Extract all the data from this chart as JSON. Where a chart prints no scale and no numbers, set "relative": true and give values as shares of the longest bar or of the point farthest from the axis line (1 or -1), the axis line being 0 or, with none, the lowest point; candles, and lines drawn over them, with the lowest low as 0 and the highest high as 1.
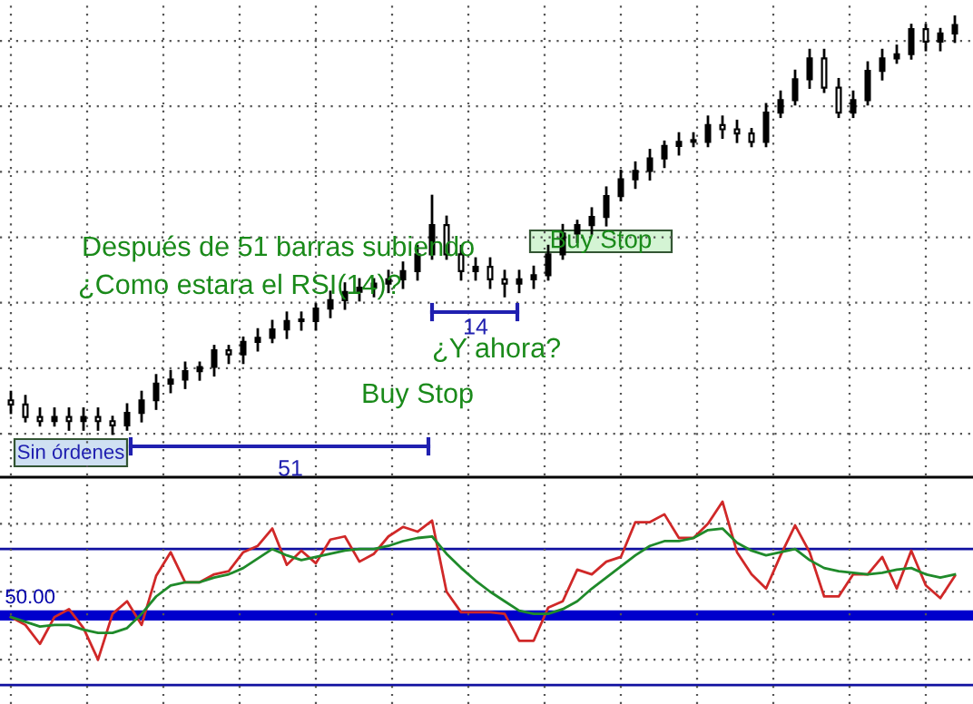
{
  "chart_data": [
    {
      "type": "candlestick",
      "relative": true,
      "color": "#000000",
      "grid": true,
      "categories": [
        null,
        null,
        null,
        null,
        null,
        null,
        null,
        null,
        null,
        null,
        null,
        null,
        null,
        null,
        null,
        null,
        null,
        null,
        null,
        null,
        null,
        null,
        null,
        null,
        null,
        null,
        null,
        null,
        null,
        null,
        null,
        null,
        null,
        null,
        null,
        null,
        null,
        null,
        null,
        null,
        null,
        null,
        null,
        null,
        null,
        null,
        null,
        null,
        null,
        null,
        null,
        null,
        null,
        null,
        null,
        null,
        null,
        null,
        null,
        null,
        null,
        null,
        null,
        null,
        null,
        null
      ],
      "ohlc": [
        [
          0.08,
          0.1,
          0.05,
          0.07
        ],
        [
          0.07,
          0.09,
          0.03,
          0.04
        ],
        [
          0.04,
          0.06,
          0.02,
          0.03
        ],
        [
          0.03,
          0.06,
          0.02,
          0.04
        ],
        [
          0.04,
          0.06,
          0.01,
          0.03
        ],
        [
          0.03,
          0.06,
          0.01,
          0.04
        ],
        [
          0.04,
          0.06,
          0.01,
          0.03
        ],
        [
          0.03,
          0.04,
          0.0,
          0.02
        ],
        [
          0.02,
          0.07,
          0.01,
          0.05
        ],
        [
          0.05,
          0.1,
          0.03,
          0.08
        ],
        [
          0.08,
          0.14,
          0.06,
          0.12
        ],
        [
          0.12,
          0.15,
          0.1,
          0.13
        ],
        [
          0.13,
          0.17,
          0.11,
          0.15
        ],
        [
          0.15,
          0.17,
          0.13,
          0.16
        ],
        [
          0.16,
          0.21,
          0.14,
          0.2
        ],
        [
          0.2,
          0.21,
          0.17,
          0.19
        ],
        [
          0.19,
          0.23,
          0.17,
          0.22
        ],
        [
          0.22,
          0.25,
          0.2,
          0.23
        ],
        [
          0.23,
          0.27,
          0.22,
          0.25
        ],
        [
          0.25,
          0.29,
          0.23,
          0.27
        ],
        [
          0.27,
          0.29,
          0.25,
          0.27
        ],
        [
          0.27,
          0.31,
          0.25,
          0.3
        ],
        [
          0.3,
          0.34,
          0.28,
          0.32
        ],
        [
          0.32,
          0.36,
          0.3,
          0.34
        ],
        [
          0.34,
          0.37,
          0.32,
          0.35
        ],
        [
          0.35,
          0.37,
          0.33,
          0.36
        ],
        [
          0.36,
          0.39,
          0.34,
          0.37
        ],
        [
          0.37,
          0.41,
          0.35,
          0.39
        ],
        [
          0.39,
          0.45,
          0.37,
          0.43
        ],
        [
          0.43,
          0.57,
          0.42,
          0.5
        ],
        [
          0.5,
          0.52,
          0.42,
          0.43
        ],
        [
          0.43,
          0.45,
          0.37,
          0.39
        ],
        [
          0.39,
          0.42,
          0.37,
          0.4
        ],
        [
          0.4,
          0.42,
          0.35,
          0.37
        ],
        [
          0.37,
          0.39,
          0.33,
          0.36
        ],
        [
          0.36,
          0.39,
          0.34,
          0.37
        ],
        [
          0.37,
          0.4,
          0.35,
          0.38
        ],
        [
          0.38,
          0.45,
          0.37,
          0.43
        ],
        [
          0.43,
          0.5,
          0.42,
          0.48
        ],
        [
          0.48,
          0.51,
          0.46,
          0.5
        ],
        [
          0.5,
          0.54,
          0.48,
          0.52
        ],
        [
          0.52,
          0.59,
          0.5,
          0.57
        ],
        [
          0.57,
          0.63,
          0.56,
          0.61
        ],
        [
          0.61,
          0.65,
          0.59,
          0.63
        ],
        [
          0.63,
          0.68,
          0.61,
          0.66
        ],
        [
          0.66,
          0.7,
          0.64,
          0.69
        ],
        [
          0.69,
          0.72,
          0.67,
          0.7
        ],
        [
          0.7,
          0.72,
          0.69,
          0.7
        ],
        [
          0.7,
          0.76,
          0.69,
          0.74
        ],
        [
          0.74,
          0.76,
          0.71,
          0.73
        ],
        [
          0.73,
          0.75,
          0.7,
          0.72
        ],
        [
          0.72,
          0.73,
          0.69,
          0.7
        ],
        [
          0.7,
          0.79,
          0.69,
          0.77
        ],
        [
          0.77,
          0.82,
          0.76,
          0.8
        ],
        [
          0.8,
          0.87,
          0.79,
          0.85
        ],
        [
          0.85,
          0.92,
          0.83,
          0.9
        ],
        [
          0.9,
          0.92,
          0.82,
          0.83
        ],
        [
          0.83,
          0.85,
          0.76,
          0.77
        ],
        [
          0.77,
          0.82,
          0.76,
          0.8
        ],
        [
          0.8,
          0.89,
          0.79,
          0.87
        ],
        [
          0.87,
          0.92,
          0.85,
          0.9
        ],
        [
          0.9,
          0.93,
          0.89,
          0.91
        ],
        [
          0.91,
          0.98,
          0.9,
          0.97
        ],
        [
          0.97,
          0.98,
          0.92,
          0.94
        ],
        [
          0.94,
          0.97,
          0.92,
          0.96
        ],
        [
          0.96,
          1.0,
          0.94,
          0.98
        ]
      ],
      "annotations": [
        "Después de 51 barras subiendo",
        "¿Como estara el RSI(14)?",
        "Buy Stop",
        "¿Y ahora?",
        "14",
        "Buy Stop",
        "51",
        "Sin órdenes"
      ]
    },
    {
      "type": "line",
      "relative": true,
      "grid": true,
      "categories": [
        null,
        null,
        null,
        null,
        null,
        null,
        null,
        null,
        null,
        null,
        null,
        null,
        null,
        null,
        null,
        null,
        null,
        null,
        null,
        null,
        null,
        null,
        null,
        null,
        null,
        null,
        null,
        null,
        null,
        null,
        null,
        null,
        null,
        null,
        null,
        null,
        null,
        null,
        null,
        null,
        null,
        null,
        null,
        null,
        null,
        null,
        null,
        null,
        null,
        null,
        null,
        null,
        null,
        null,
        null,
        null,
        null,
        null,
        null,
        null,
        null,
        null,
        null,
        null,
        null,
        null
      ],
      "series": [
        {
          "color": "#d02828",
          "values": [
            0.27,
            0.22,
            0.1,
            0.27,
            0.32,
            0.2,
            0,
            0.29,
            0.37,
            0.22,
            0.53,
            0.68,
            0.49,
            0.49,
            0.54,
            0.56,
            0.68,
            0.72,
            0.83,
            0.6,
            0.69,
            0.61,
            0.76,
            0.78,
            0.62,
            0.67,
            0.78,
            0.84,
            0.81,
            0.88,
            0.43,
            0.3,
            0.3,
            0.3,
            0.29,
            0.12,
            0.12,
            0.33,
            0.37,
            0.57,
            0.54,
            0.62,
            0.65,
            0.87,
            0.87,
            0.92,
            0.77,
            0.77,
            0.86,
            1.0,
            0.68,
            0.54,
            0.45,
            0.66,
            0.85,
            0.68,
            0.4,
            0.4,
            0.54,
            0.54,
            0.65,
            0.45,
            0.69,
            0.47,
            0.39,
            0.53
          ]
        },
        {
          "color": "#1f8a2a",
          "values": [
            0.27,
            0.24,
            0.21,
            0.22,
            0.22,
            0.19,
            0.17,
            0.17,
            0.2,
            0.29,
            0.4,
            0.47,
            0.49,
            0.49,
            0.52,
            0.54,
            0.58,
            0.64,
            0.7,
            0.66,
            0.63,
            0.65,
            0.67,
            0.69,
            0.7,
            0.7,
            0.72,
            0.75,
            0.77,
            0.78,
            0.67,
            0.58,
            0.5,
            0.43,
            0.37,
            0.31,
            0.29,
            0.29,
            0.32,
            0.37,
            0.45,
            0.52,
            0.59,
            0.66,
            0.72,
            0.75,
            0.75,
            0.77,
            0.82,
            0.83,
            0.74,
            0.69,
            0.66,
            0.68,
            0.7,
            0.63,
            0.58,
            0.56,
            0.55,
            0.54,
            0.55,
            0.57,
            0.58,
            0.54,
            0.52,
            0.54
          ]
        }
      ],
      "ref_lines": [
        {
          "axis": "y",
          "value": 0.7,
          "color": "#1010a0"
        },
        {
          "axis": "y",
          "value": 0.28,
          "color": "#0000cc"
        },
        {
          "axis": "y",
          "value": -0.16,
          "color": "#1010a0"
        }
      ],
      "annotations": [
        "50.00"
      ]
    }
  ]
}
